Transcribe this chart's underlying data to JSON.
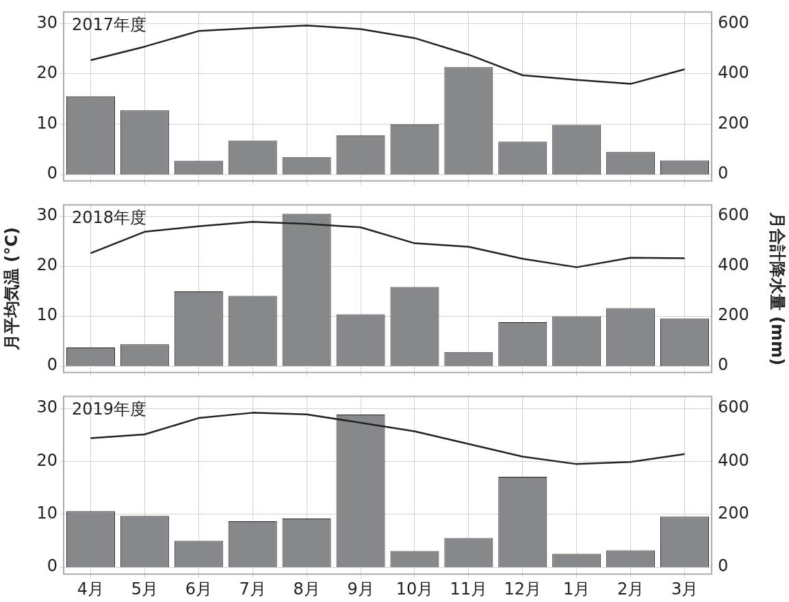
{
  "chart_data": [
    {
      "type": "bar",
      "title": "2017年度",
      "categories": [
        null,
        null,
        null,
        null,
        null,
        null,
        null,
        null,
        null,
        null,
        null,
        null
      ],
      "series": [
        {
          "axis": "y2",
          "color": "#87888c",
          "values": [
            311,
            255,
            54,
            135,
            69,
            156,
            199,
            426,
            130,
            197,
            89,
            56
          ]
        },
        {
          "type": "line",
          "axis": "y",
          "color": "#222222",
          "values": [
            22.7,
            25.4,
            28.5,
            29.1,
            29.6,
            28.9,
            27.1,
            23.8,
            19.7,
            18.8,
            18.0,
            20.9
          ]
        }
      ],
      "ylim": [
        -1.3,
        32.3
      ],
      "yticks": [
        0,
        10,
        20,
        30
      ],
      "y2lim": [
        -26,
        646
      ],
      "y2ticks": [
        0,
        200,
        400,
        600
      ],
      "grid": true,
      "tick_labels": "y",
      "marker": "none"
    },
    {
      "type": "bar",
      "title": "2018年度",
      "ylabel": "月平均気温 (°C)",
      "y2label": "月合計降水量 (mm)",
      "categories": [
        null,
        null,
        null,
        null,
        null,
        null,
        null,
        null,
        null,
        null,
        null,
        null
      ],
      "series": [
        {
          "axis": "y2",
          "color": "#87888c",
          "values": [
            74,
            87,
            299,
            281,
            610,
            207,
            317,
            56,
            176,
            199,
            232,
            191
          ]
        },
        {
          "type": "line",
          "axis": "y",
          "color": "#222222",
          "values": [
            22.6,
            26.9,
            28.0,
            28.9,
            28.5,
            27.8,
            24.6,
            23.9,
            21.5,
            19.8,
            21.7,
            21.6
          ]
        }
      ],
      "ylim": [
        -1.3,
        32.3
      ],
      "yticks": [
        0,
        10,
        20,
        30
      ],
      "y2lim": [
        -26,
        646
      ],
      "y2ticks": [
        0,
        200,
        400,
        600
      ],
      "grid": true,
      "tick_labels": "y",
      "marker": "none"
    },
    {
      "type": "bar",
      "title": "2019年度",
      "categories": [
        "4月",
        "5月",
        "6月",
        "7月",
        "8月",
        "9月",
        "10月",
        "11月",
        "12月",
        "1月",
        "2月",
        "3月"
      ],
      "series": [
        {
          "axis": "y2",
          "color": "#87888c",
          "values": [
            212,
            194,
            100,
            174,
            184,
            577,
            61,
            110,
            342,
            51,
            64,
            191
          ]
        },
        {
          "type": "line",
          "axis": "y",
          "color": "#222222",
          "values": [
            24.4,
            25.1,
            28.2,
            29.2,
            28.9,
            27.3,
            25.7,
            23.3,
            20.9,
            19.5,
            19.9,
            21.4
          ]
        }
      ],
      "ylim": [
        -1.3,
        32.3
      ],
      "yticks": [
        0,
        10,
        20,
        30
      ],
      "y2lim": [
        -26,
        646
      ],
      "y2ticks": [
        0,
        200,
        400,
        600
      ],
      "grid": true,
      "marker": "none"
    }
  ]
}
